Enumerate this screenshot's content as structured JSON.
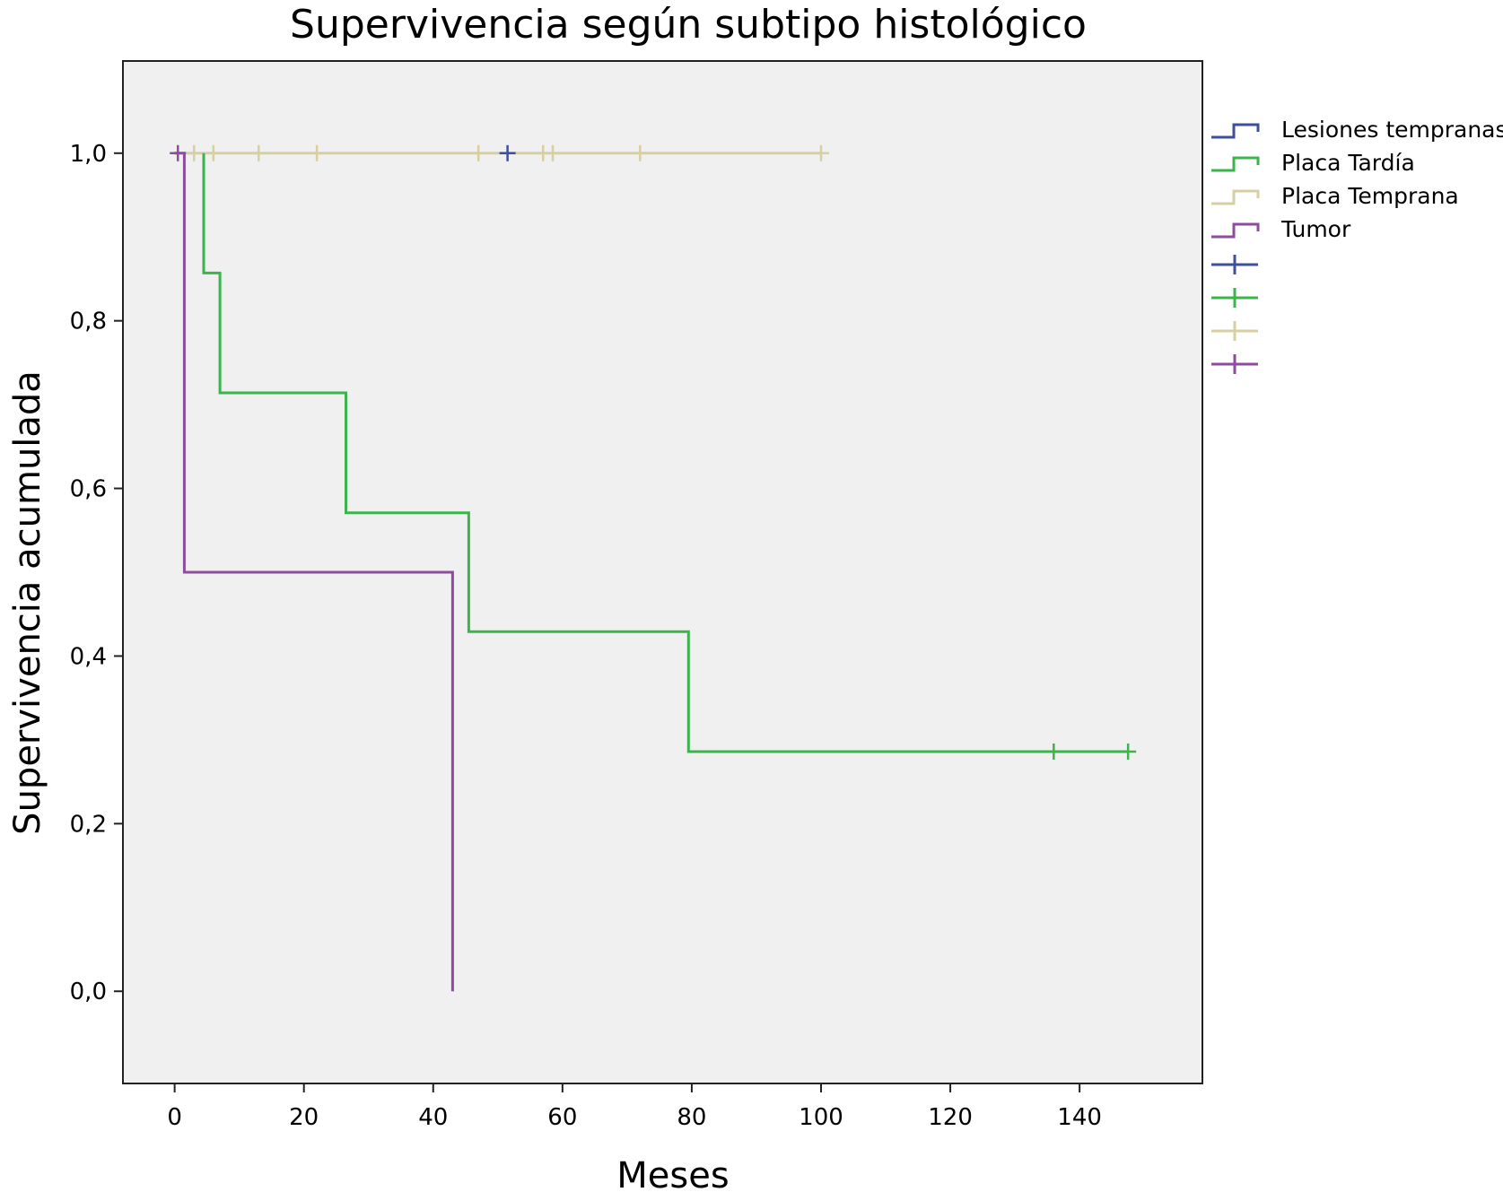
{
  "chart_data": {
    "type": "line",
    "subtype": "kaplan-meier step",
    "title": "Supervivencia según subtipo histológico",
    "xlabel": "Meses",
    "ylabel": "Supervivencia acumulada",
    "xlim": [
      -8,
      159
    ],
    "ylim": [
      -0.11,
      1.11
    ],
    "xticks": [
      0,
      20,
      40,
      60,
      80,
      100,
      120,
      140
    ],
    "yticks": [
      0.0,
      0.2,
      0.4,
      0.6,
      0.8,
      1.0
    ],
    "ytick_labels": [
      "0,0",
      "0,2",
      "0,4",
      "0,6",
      "0,8",
      "1,0"
    ],
    "grid": false,
    "background": "#f0f0f0",
    "legend_position": "right",
    "series": [
      {
        "name": "Lesiones tempranas",
        "color": "#3e4f9e",
        "steps": [
          [
            51.5,
            1.0
          ]
        ],
        "censored": [
          [
            51.5,
            1.0
          ]
        ]
      },
      {
        "name": "Placa Tardía",
        "color": "#3cb44b",
        "steps": [
          [
            4.5,
            1.0
          ],
          [
            4.5,
            0.857
          ],
          [
            7,
            0.857
          ],
          [
            7,
            0.714
          ],
          [
            26.5,
            0.714
          ],
          [
            26.5,
            0.571
          ],
          [
            45.5,
            0.571
          ],
          [
            45.5,
            0.429
          ],
          [
            79.5,
            0.429
          ],
          [
            79.5,
            0.286
          ],
          [
            147.5,
            0.286
          ]
        ],
        "censored": [
          [
            136,
            0.286
          ],
          [
            147.5,
            0.286
          ]
        ]
      },
      {
        "name": "Placa Temprana",
        "color": "#d8cfa0",
        "steps": [
          [
            0,
            1.0
          ],
          [
            100,
            1.0
          ]
        ],
        "censored": [
          [
            3,
            1.0
          ],
          [
            6,
            1.0
          ],
          [
            13,
            1.0
          ],
          [
            22,
            1.0
          ],
          [
            47,
            1.0
          ],
          [
            57,
            1.0
          ],
          [
            58.5,
            1.0
          ],
          [
            72,
            1.0
          ],
          [
            100,
            1.0
          ]
        ]
      },
      {
        "name": "Tumor",
        "color": "#8e4c9e",
        "steps": [
          [
            0,
            1.0
          ],
          [
            1.5,
            1.0
          ],
          [
            1.5,
            0.5
          ],
          [
            43,
            0.5
          ],
          [
            43,
            0.0
          ]
        ],
        "censored": [
          [
            0.5,
            1.0
          ]
        ]
      }
    ]
  }
}
